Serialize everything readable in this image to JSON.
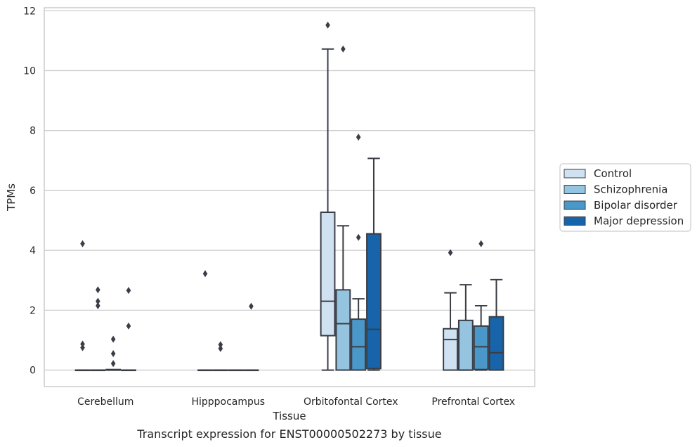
{
  "chart_data": {
    "type": "box",
    "title": "",
    "caption": "Transcript expression for ENST00000502273 by tissue",
    "xlabel": "Tissue",
    "ylabel": "TPMs",
    "ylim": [
      -0.55,
      12.1
    ],
    "yticks": [
      0,
      2,
      4,
      6,
      8,
      10,
      12
    ],
    "grid": "horizontal",
    "legend_position": "right",
    "categories": [
      "Cerebellum",
      "Hipppocampus",
      "Orbitofontal Cortex",
      "Prefrontal Cortex"
    ],
    "series": [
      {
        "name": "Control",
        "color": "#d0e1f2",
        "boxes": [
          {
            "q1": 0,
            "median": 0,
            "q3": 0,
            "whislo": 0,
            "whishi": 0,
            "fliers": [
              0.75,
              0.87,
              4.22
            ]
          },
          {
            "q1": 0,
            "median": 0,
            "q3": 0,
            "whislo": 0,
            "whishi": 0,
            "fliers": [
              3.22
            ]
          },
          {
            "q1": 1.15,
            "median": 2.3,
            "q3": 5.27,
            "whislo": 0,
            "whishi": 10.72,
            "fliers": [
              11.52
            ]
          },
          {
            "q1": 0,
            "median": 1.02,
            "q3": 1.38,
            "whislo": 0,
            "whishi": 2.58,
            "fliers": [
              3.92
            ]
          }
        ]
      },
      {
        "name": "Schizophrenia",
        "color": "#94c4df",
        "boxes": [
          {
            "q1": 0,
            "median": 0,
            "q3": 0,
            "whislo": 0,
            "whishi": 0,
            "fliers": [
              2.15,
              2.3,
              2.68
            ]
          },
          {
            "q1": 0,
            "median": 0,
            "q3": 0,
            "whislo": 0,
            "whishi": 0,
            "fliers": [
              0.72,
              0.85
            ]
          },
          {
            "q1": 0,
            "median": 1.55,
            "q3": 2.68,
            "whislo": 0,
            "whishi": 4.82,
            "fliers": [
              10.72
            ]
          },
          {
            "q1": 0,
            "median": 0,
            "q3": 1.66,
            "whislo": 0,
            "whishi": 2.85,
            "fliers": []
          }
        ]
      },
      {
        "name": "Bipolar disorder",
        "color": "#4a98c9",
        "boxes": [
          {
            "q1": 0,
            "median": 0,
            "q3": 0.02,
            "whislo": 0,
            "whishi": 0.02,
            "fliers": [
              0.22,
              0.55,
              1.03
            ]
          },
          {
            "q1": 0,
            "median": 0,
            "q3": 0,
            "whislo": 0,
            "whishi": 0,
            "fliers": []
          },
          {
            "q1": 0,
            "median": 0.78,
            "q3": 1.7,
            "whislo": 0,
            "whishi": 2.38,
            "fliers": [
              4.43,
              7.78
            ]
          },
          {
            "q1": 0.02,
            "median": 0.78,
            "q3": 1.47,
            "whislo": 0,
            "whishi": 2.15,
            "fliers": [
              4.22
            ]
          }
        ]
      },
      {
        "name": "Major depression",
        "color": "#1764ab",
        "boxes": [
          {
            "q1": 0,
            "median": 0,
            "q3": 0,
            "whislo": 0,
            "whishi": 0,
            "fliers": [
              1.47,
              2.66
            ]
          },
          {
            "q1": 0,
            "median": 0,
            "q3": 0,
            "whislo": 0,
            "whishi": 0,
            "fliers": [
              2.13
            ]
          },
          {
            "q1": 0.05,
            "median": 1.36,
            "q3": 4.55,
            "whislo": 0,
            "whishi": 7.07,
            "fliers": []
          },
          {
            "q1": 0,
            "median": 0.58,
            "q3": 1.78,
            "whislo": 0,
            "whishi": 3.02,
            "fliers": []
          }
        ]
      }
    ]
  }
}
